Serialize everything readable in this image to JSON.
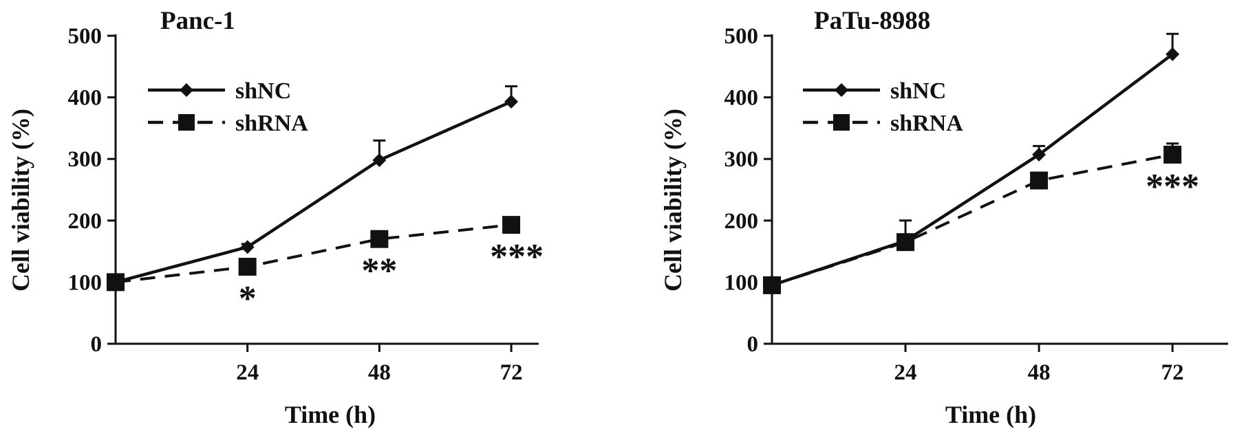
{
  "chart_data": [
    {
      "type": "line",
      "title": "Panc-1",
      "xlabel": "Time (h)",
      "ylabel": "Cell viability (%)",
      "x": [
        0,
        24,
        48,
        72
      ],
      "xticks": [
        24,
        48,
        72
      ],
      "xlim": [
        0,
        77
      ],
      "ylim": [
        0,
        500
      ],
      "yticks": [
        0,
        100,
        200,
        300,
        400,
        500
      ],
      "grid": false,
      "legend_position": "top-left",
      "series": [
        {
          "name": "shNC",
          "style": "solid",
          "marker": "diamond",
          "values": [
            100,
            157,
            298,
            393
          ],
          "error": [
            0,
            5,
            32,
            25
          ]
        },
        {
          "name": "shRNA",
          "style": "dashed",
          "marker": "square",
          "values": [
            100,
            125,
            170,
            193
          ],
          "error": [
            0,
            0,
            0,
            0
          ]
        }
      ],
      "annotations": [
        {
          "x": 24,
          "text": "*"
        },
        {
          "x": 48,
          "text": "**"
        },
        {
          "x": 72,
          "text": "***"
        }
      ]
    },
    {
      "type": "line",
      "title": "PaTu-8988",
      "xlabel": "Time (h)",
      "ylabel": "Cell viability (%)",
      "x": [
        0,
        24,
        48,
        72
      ],
      "xticks": [
        24,
        48,
        72
      ],
      "xlim": [
        0,
        82
      ],
      "ylim": [
        0,
        500
      ],
      "yticks": [
        0,
        100,
        200,
        300,
        400,
        500
      ],
      "grid": false,
      "legend_position": "top-left",
      "series": [
        {
          "name": "shNC",
          "style": "solid",
          "marker": "diamond",
          "values": [
            95,
            167,
            307,
            470
          ],
          "error": [
            0,
            33,
            14,
            33
          ]
        },
        {
          "name": "shRNA",
          "style": "dashed",
          "marker": "square",
          "values": [
            95,
            165,
            265,
            307
          ],
          "error": [
            0,
            0,
            0,
            18
          ]
        }
      ],
      "annotations": [
        {
          "x": 72,
          "text": "***"
        }
      ]
    }
  ]
}
